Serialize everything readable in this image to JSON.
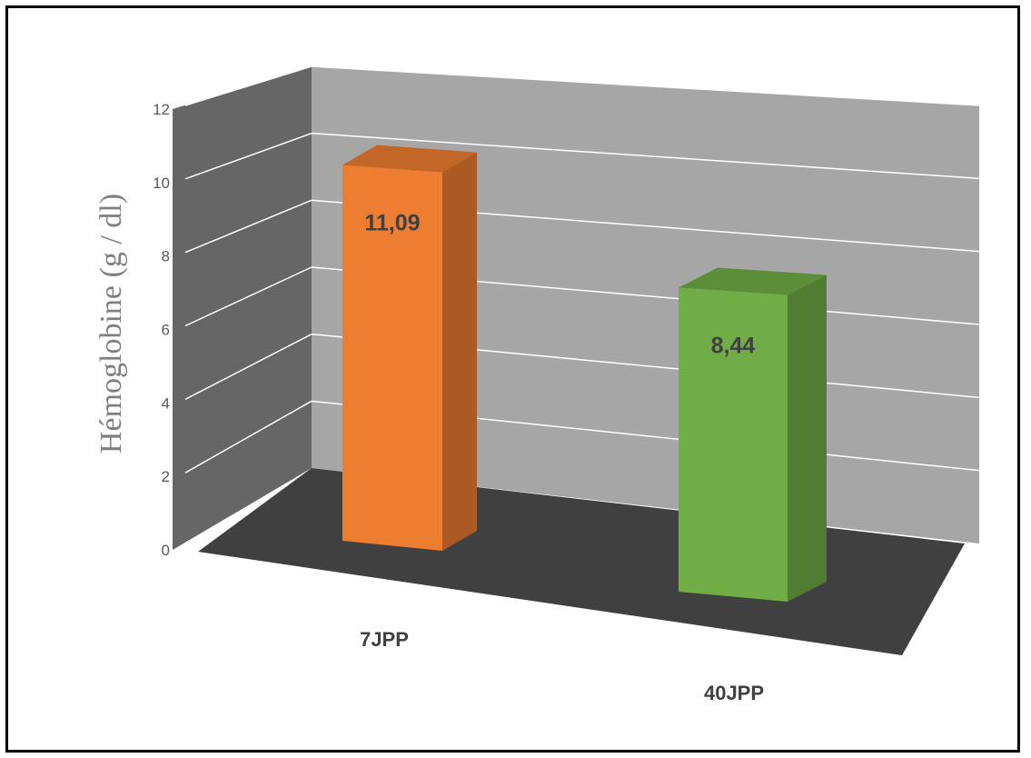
{
  "chart_data": {
    "type": "bar",
    "categories": [
      "7JPP",
      "40JPP"
    ],
    "values": [
      11.09,
      8.44
    ],
    "data_labels": [
      "11,09",
      "8,44"
    ],
    "title": "",
    "xlabel": "",
    "ylabel": "Hémoglobine (g / dl)",
    "ylim": [
      0,
      12
    ],
    "yticks": [
      "0",
      "2",
      "4",
      "6",
      "8",
      "10",
      "12"
    ],
    "grid": true,
    "style": "3d-column",
    "colors": {
      "7JPP": "#ED7D31",
      "40JPP": "#70AD47",
      "back_wall": "#A6A6A6",
      "side_wall": "#666666",
      "floor": "#404040",
      "gridline": "#ffffff"
    }
  }
}
